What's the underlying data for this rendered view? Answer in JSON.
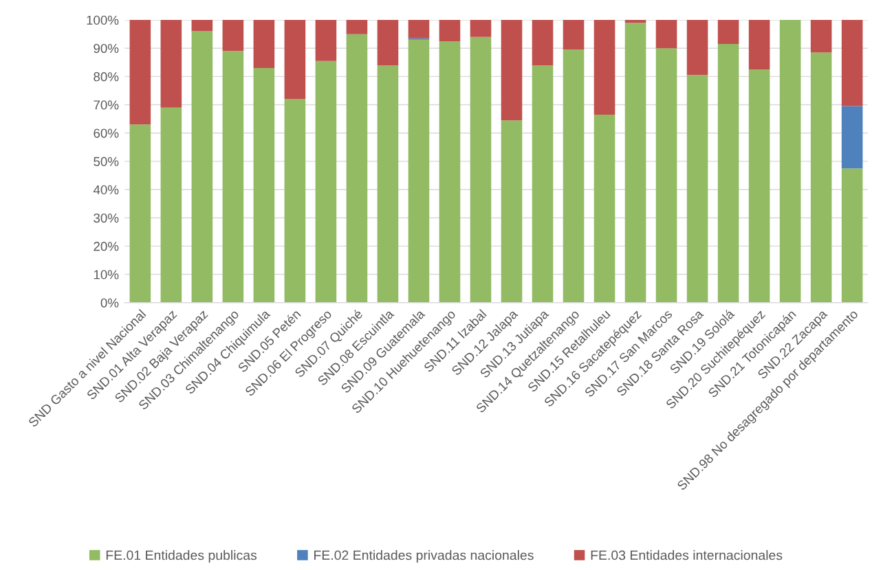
{
  "chart_data": {
    "type": "bar",
    "stacked": true,
    "categories": [
      "SND Gasto a nivel Nacional",
      "SND.01 Alta Verapaz",
      "SND.02 Baja Verapaz",
      "SND.03 Chimaltenango",
      "SND.04 Chiquimula",
      "SND.05 Petén",
      "SND.06 El Progreso",
      "SND.07 Quiché",
      "SND.08 Escuintla",
      "SND.09 Guatemala",
      "SND.10 Huehuetenango",
      "SND.11 Izabal",
      "SND.12 Jalapa",
      "SND.13 Jutiapa",
      "SND.14 Quetzaltenango",
      "SND.15 Retalhuleu",
      "SND.16 Sacatepéquez",
      "SND.17 San Marcos",
      "SND.18 Santa Rosa",
      "SND.19 Sololá",
      "SND.20 Suchitepéquez",
      "SND.21 Totonicapán",
      "SND.22 Zacapa",
      "SND.98 No desagregado por departamento"
    ],
    "series": [
      {
        "name": "FE.01 Entidades publicas",
        "color": "#93bb64",
        "values": [
          63,
          69,
          96,
          89,
          83,
          72,
          85.5,
          95,
          84,
          93,
          92.5,
          94,
          64.5,
          84,
          89.5,
          66.5,
          99,
          90,
          80.5,
          91.5,
          82.5,
          100,
          88.5,
          47.5
        ]
      },
      {
        "name": "FE.02 Entidades privadas nacionales",
        "color": "#4f81bd",
        "values": [
          null,
          null,
          null,
          null,
          null,
          null,
          null,
          null,
          null,
          0.5,
          null,
          null,
          null,
          null,
          null,
          null,
          null,
          null,
          null,
          null,
          null,
          null,
          null,
          22
        ]
      },
      {
        "name": "FE.03 Entidades internacionales",
        "color": "#c0504d",
        "values": [
          37,
          31,
          4,
          11,
          17,
          28,
          14.5,
          5,
          16,
          6.5,
          7.5,
          6,
          35.5,
          16,
          10.5,
          33.5,
          1,
          10,
          19.5,
          8.5,
          17.5,
          null,
          11.5,
          30.5
        ]
      }
    ],
    "ylim": [
      0,
      100
    ],
    "yticks": [
      {
        "value": 0,
        "label": "0%"
      },
      {
        "value": 10,
        "label": "10%"
      },
      {
        "value": 20,
        "label": "20%"
      },
      {
        "value": 30,
        "label": "30%"
      },
      {
        "value": 40,
        "label": "40%"
      },
      {
        "value": 50,
        "label": "50%"
      },
      {
        "value": 60,
        "label": "60%"
      },
      {
        "value": 70,
        "label": "70%"
      },
      {
        "value": 80,
        "label": "80%"
      },
      {
        "value": 90,
        "label": "90%"
      },
      {
        "value": 100,
        "label": "100%"
      }
    ],
    "grid": "y",
    "legend": "bottom"
  }
}
